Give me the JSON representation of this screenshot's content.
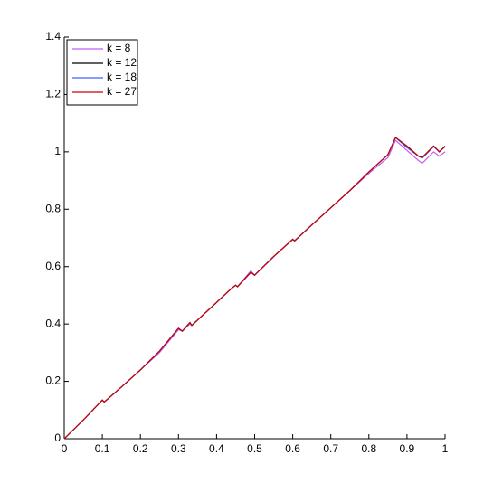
{
  "chart_data": {
    "type": "line",
    "x": [
      0,
      0.05,
      0.1,
      0.105,
      0.15,
      0.2,
      0.25,
      0.3,
      0.31,
      0.33,
      0.335,
      0.4,
      0.44,
      0.45,
      0.455,
      0.49,
      0.5,
      0.55,
      0.6,
      0.605,
      0.65,
      0.7,
      0.75,
      0.8,
      0.85,
      0.87,
      0.9,
      0.93,
      0.94,
      0.97,
      0.985,
      1.0
    ],
    "series": [
      {
        "name": "k = 8",
        "color": "#c060f0",
        "values": [
          0,
          0.065,
          0.135,
          0.128,
          0.18,
          0.24,
          0.3,
          0.38,
          0.375,
          0.4,
          0.395,
          0.475,
          0.525,
          0.535,
          0.53,
          0.585,
          0.57,
          0.635,
          0.695,
          0.69,
          0.745,
          0.805,
          0.865,
          0.925,
          0.98,
          1.04,
          1.005,
          0.97,
          0.96,
          1.0,
          0.985,
          1.0
        ]
      },
      {
        "name": "k = 12",
        "color": "#000000",
        "values": [
          0,
          0.065,
          0.135,
          0.128,
          0.18,
          0.24,
          0.305,
          0.385,
          0.375,
          0.405,
          0.395,
          0.475,
          0.525,
          0.535,
          0.53,
          0.58,
          0.57,
          0.635,
          0.695,
          0.69,
          0.745,
          0.805,
          0.865,
          0.93,
          0.99,
          1.05,
          1.02,
          0.985,
          0.98,
          1.02,
          1.0,
          1.02
        ]
      },
      {
        "name": "k = 18",
        "color": "#4060ff",
        "values": [
          0,
          0.065,
          0.135,
          0.128,
          0.18,
          0.24,
          0.305,
          0.385,
          0.375,
          0.405,
          0.395,
          0.475,
          0.525,
          0.535,
          0.53,
          0.58,
          0.57,
          0.635,
          0.695,
          0.69,
          0.745,
          0.805,
          0.865,
          0.93,
          0.99,
          1.05,
          1.015,
          0.985,
          0.978,
          1.018,
          1.0,
          1.018
        ]
      },
      {
        "name": "k = 27",
        "color": "#cc0000",
        "values": [
          0,
          0.065,
          0.135,
          0.128,
          0.18,
          0.24,
          0.305,
          0.385,
          0.375,
          0.405,
          0.395,
          0.475,
          0.525,
          0.535,
          0.53,
          0.58,
          0.57,
          0.635,
          0.695,
          0.69,
          0.745,
          0.805,
          0.865,
          0.93,
          0.99,
          1.05,
          1.02,
          0.985,
          0.98,
          1.02,
          1.0,
          1.02
        ]
      }
    ],
    "xlim": [
      0,
      1
    ],
    "ylim": [
      0,
      1.4
    ],
    "xticks": [
      0,
      0.1,
      0.2,
      0.3,
      0.4,
      0.5,
      0.6,
      0.7,
      0.8,
      0.9,
      1
    ],
    "yticks": [
      0,
      0.2,
      0.4,
      0.6,
      0.8,
      1,
      1.2,
      1.4
    ],
    "grid": false,
    "legend": "upper-left"
  }
}
